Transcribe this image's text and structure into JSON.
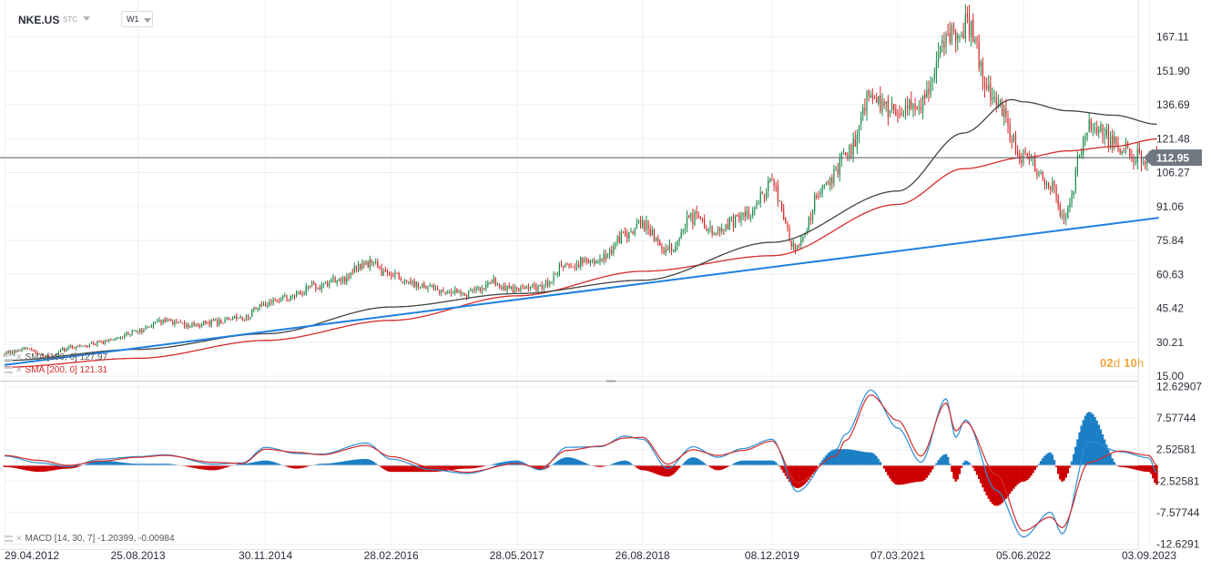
{
  "header": {
    "symbol": "NKE.US",
    "symbol_type": "STC",
    "interval": "W1"
  },
  "countdown": {
    "days": "02",
    "days_unit": "d",
    "hours": "10",
    "hours_unit": "h"
  },
  "legend": {
    "sma100": "SMA [100, 0] 127.97",
    "sma200": "SMA [200, 0] 121.31",
    "macd": "MACD [14, 30, 7] -1.20399, -0.00984"
  },
  "colors": {
    "up": "#1a8a4a",
    "down": "#d42b2b",
    "sma100": "#444444",
    "sma200": "#d42b2b",
    "trendline": "#1f80e0",
    "macd_line": "#2b8fd6",
    "signal_line": "#d42b2b",
    "hist_pos": "#1b7fc4",
    "hist_neg": "#cc0000",
    "grid": "#eef0f2",
    "last_price_bg": "#6f7780"
  },
  "chart_data": {
    "type": "candlestick",
    "title": "",
    "xlabel": "",
    "ylabel": "",
    "timeframe": "W1",
    "x_tick_labels": [
      "29.04.2012",
      "25.08.2013",
      "30.11.2014",
      "28.02.2016",
      "28.05.2017",
      "26.08.2018",
      "08.12.2019",
      "07.03.2021",
      "05.06.2022",
      "03.09.2023"
    ],
    "price_panel": {
      "y_ticks": [
        15.0,
        30.21,
        45.42,
        60.63,
        75.84,
        91.06,
        106.27,
        121.48,
        136.69,
        151.9,
        167.11
      ],
      "y_tick_labels": [
        "15.00",
        "30.21",
        "45.42",
        "60.63",
        "75.84",
        "91.06",
        "106.27",
        "121.48",
        "136.69",
        "151.90",
        "167.11"
      ],
      "ylim": [
        15.0,
        175.5
      ],
      "last_price": 112.95,
      "last_price_label": "112.95",
      "close_anchors": [
        [
          "29.04.2012",
          25
        ],
        [
          "15.07.2012",
          27
        ],
        [
          "30.09.2012",
          24
        ],
        [
          "30.12.2012",
          28
        ],
        [
          "31.03.2013",
          30
        ],
        [
          "25.08.2013",
          35
        ],
        [
          "01.12.2013",
          40
        ],
        [
          "02.03.2014",
          38
        ],
        [
          "01.06.2014",
          39
        ],
        [
          "07.09.2014",
          41
        ],
        [
          "30.11.2014",
          48
        ],
        [
          "08.02.2015",
          50
        ],
        [
          "31.05.2015",
          55
        ],
        [
          "23.08.2015",
          58
        ],
        [
          "29.11.2015",
          66
        ],
        [
          "28.02.2016",
          60
        ],
        [
          "29.05.2016",
          56
        ],
        [
          "28.08.2016",
          53
        ],
        [
          "27.11.2016",
          52
        ],
        [
          "26.02.2017",
          57
        ],
        [
          "28.05.2017",
          54
        ],
        [
          "20.08.2017",
          55
        ],
        [
          "26.11.2017",
          65
        ],
        [
          "25.03.2018",
          68
        ],
        [
          "24.06.2018",
          78
        ],
        [
          "26.08.2018",
          83
        ],
        [
          "25.11.2018",
          72
        ],
        [
          "24.02.2019",
          86
        ],
        [
          "26.05.2019",
          80
        ],
        [
          "25.08.2019",
          87
        ],
        [
          "08.12.2019",
          100
        ],
        [
          "08.03.2020",
          72
        ],
        [
          "31.05.2020",
          98
        ],
        [
          "30.08.2020",
          113
        ],
        [
          "29.11.2020",
          140
        ],
        [
          "07.03.2021",
          132
        ],
        [
          "30.05.2021",
          138
        ],
        [
          "29.08.2021",
          168
        ],
        [
          "07.11.2021",
          172
        ],
        [
          "27.02.2022",
          136
        ],
        [
          "05.06.2022",
          113
        ],
        [
          "11.09.2022",
          102
        ],
        [
          "23.10.2022",
          85
        ],
        [
          "29.01.2023",
          127
        ],
        [
          "21.05.2023",
          118
        ],
        [
          "03.09.2023",
          110
        ],
        [
          "01.10.2023",
          112.95
        ]
      ],
      "sma100": {
        "name": "SMA [100, 0]",
        "last": 127.97,
        "anchors": [
          [
            "29.04.2012",
            22
          ],
          [
            "25.08.2013",
            27
          ],
          [
            "30.11.2014",
            34
          ],
          [
            "28.02.2016",
            46
          ],
          [
            "28.05.2017",
            52
          ],
          [
            "26.08.2018",
            58
          ],
          [
            "08.12.2019",
            75
          ],
          [
            "07.03.2021",
            98
          ],
          [
            "31.10.2021",
            124
          ],
          [
            "24.04.2022",
            139
          ],
          [
            "05.06.2022",
            138
          ],
          [
            "13.11.2022",
            134
          ],
          [
            "30.04.2023",
            132
          ],
          [
            "01.10.2023",
            127.97
          ]
        ]
      },
      "sma200": {
        "name": "SMA [200, 0]",
        "last": 121.31,
        "anchors": [
          [
            "29.04.2012",
            19
          ],
          [
            "25.08.2013",
            23
          ],
          [
            "30.11.2014",
            31
          ],
          [
            "28.02.2016",
            40
          ],
          [
            "28.05.2017",
            51
          ],
          [
            "26.08.2018",
            62
          ],
          [
            "08.12.2019",
            69
          ],
          [
            "07.03.2021",
            92
          ],
          [
            "31.10.2021",
            108
          ],
          [
            "05.06.2022",
            113
          ],
          [
            "13.11.2022",
            116
          ],
          [
            "30.04.2023",
            118
          ],
          [
            "01.10.2023",
            121.31
          ]
        ]
      },
      "trendline": [
        [
          "29.04.2012",
          20
        ],
        [
          "08.10.2023",
          86
        ]
      ]
    },
    "macd_panel": {
      "y_ticks": [
        -12.6291,
        -7.57744,
        -2.52581,
        2.52581,
        7.57744,
        12.62907
      ],
      "y_tick_labels": [
        "-12.6291",
        "-7.57744",
        "-2.52581",
        "2.52581",
        "7.57744",
        "12.62907"
      ],
      "ylim": [
        -13.0,
        13.3
      ],
      "params": [
        14,
        30,
        7
      ],
      "last_macd": -1.20399,
      "last_signal": -0.00984,
      "macd_anchors": [
        [
          "29.04.2012",
          1.5
        ],
        [
          "02.09.2012",
          0.4
        ],
        [
          "16.12.2012",
          -0.2
        ],
        [
          "14.04.2013",
          1.0
        ],
        [
          "25.08.2013",
          1.4
        ],
        [
          "01.12.2013",
          1.7
        ],
        [
          "25.05.2014",
          0.2
        ],
        [
          "07.09.2014",
          0.4
        ],
        [
          "30.11.2014",
          2.9
        ],
        [
          "22.03.2015",
          1.9
        ],
        [
          "21.06.2015",
          1.8
        ],
        [
          "29.11.2015",
          3.6
        ],
        [
          "28.02.2016",
          1.0
        ],
        [
          "24.07.2016",
          -0.7
        ],
        [
          "27.11.2016",
          -1.3
        ],
        [
          "28.05.2017",
          0.6
        ],
        [
          "20.08.2017",
          -0.7
        ],
        [
          "26.11.2017",
          2.9
        ],
        [
          "25.03.2018",
          3.0
        ],
        [
          "24.06.2018",
          4.7
        ],
        [
          "26.08.2018",
          4.2
        ],
        [
          "25.11.2018",
          -0.5
        ],
        [
          "24.02.2019",
          3.0
        ],
        [
          "26.05.2019",
          1.3
        ],
        [
          "25.08.2019",
          2.7
        ],
        [
          "08.12.2019",
          4.2
        ],
        [
          "08.03.2020",
          -4.2
        ],
        [
          "26.07.2020",
          2.5
        ],
        [
          "30.08.2020",
          5.0
        ],
        [
          "29.11.2020",
          12.1
        ],
        [
          "07.03.2021",
          6.0
        ],
        [
          "30.05.2021",
          0.5
        ],
        [
          "29.08.2021",
          10.7
        ],
        [
          "03.10.2021",
          4.5
        ],
        [
          "07.11.2021",
          7.3
        ],
        [
          "27.02.2022",
          -4.0
        ],
        [
          "05.06.2022",
          -11.5
        ],
        [
          "11.09.2022",
          -7.5
        ],
        [
          "23.10.2022",
          -11.0
        ],
        [
          "29.01.2023",
          3.8
        ],
        [
          "21.05.2023",
          2.2
        ],
        [
          "03.09.2023",
          1.2
        ],
        [
          "01.10.2023",
          -1.20399
        ]
      ],
      "signal_anchors": [
        [
          "29.04.2012",
          1.6
        ],
        [
          "02.09.2012",
          0.8
        ],
        [
          "16.12.2012",
          0.0
        ],
        [
          "14.04.2013",
          0.7
        ],
        [
          "25.08.2013",
          1.3
        ],
        [
          "01.12.2013",
          1.6
        ],
        [
          "25.05.2014",
          0.5
        ],
        [
          "07.09.2014",
          0.3
        ],
        [
          "30.11.2014",
          2.6
        ],
        [
          "22.03.2015",
          2.1
        ],
        [
          "21.06.2015",
          1.7
        ],
        [
          "29.11.2015",
          3.2
        ],
        [
          "28.02.2016",
          1.4
        ],
        [
          "24.07.2016",
          -0.3
        ],
        [
          "27.11.2016",
          -1.1
        ],
        [
          "28.05.2017",
          0.3
        ],
        [
          "20.08.2017",
          -0.4
        ],
        [
          "26.11.2017",
          2.4
        ],
        [
          "25.03.2018",
          3.1
        ],
        [
          "24.06.2018",
          4.4
        ],
        [
          "26.08.2018",
          4.5
        ],
        [
          "25.11.2018",
          0.2
        ],
        [
          "24.02.2019",
          2.5
        ],
        [
          "26.05.2019",
          1.6
        ],
        [
          "25.08.2019",
          2.4
        ],
        [
          "08.12.2019",
          3.9
        ],
        [
          "08.03.2020",
          -2.8
        ],
        [
          "26.07.2020",
          1.5
        ],
        [
          "30.08.2020",
          4.0
        ],
        [
          "29.11.2020",
          11.3
        ],
        [
          "07.03.2021",
          7.2
        ],
        [
          "30.05.2021",
          1.5
        ],
        [
          "29.08.2021",
          10.0
        ],
        [
          "03.10.2021",
          5.5
        ],
        [
          "07.11.2021",
          7.0
        ],
        [
          "27.02.2022",
          -1.5
        ],
        [
          "05.06.2022",
          -10.5
        ],
        [
          "11.09.2022",
          -8.3
        ],
        [
          "23.10.2022",
          -10.0
        ],
        [
          "29.01.2023",
          0.5
        ],
        [
          "21.05.2023",
          2.3
        ],
        [
          "03.09.2023",
          1.6
        ],
        [
          "01.10.2023",
          -0.00984
        ]
      ]
    }
  }
}
